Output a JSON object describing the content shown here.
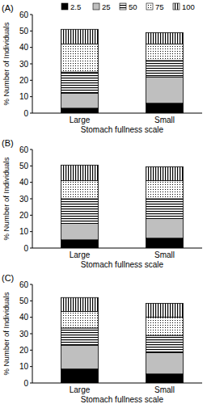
{
  "chart_data": [
    {
      "type": "bar",
      "stacked": true,
      "title": "(A)",
      "x_label": "Stomach fullness scale",
      "y_label": "% Number of Individuals",
      "legend": "top",
      "categories": [
        "Large",
        "Small"
      ],
      "ylim": [
        0,
        60
      ],
      "yticks": [
        0,
        10,
        20,
        30,
        40,
        50,
        60
      ],
      "series": [
        {
          "name": "2.5",
          "color": "#000000",
          "values": [
            3,
            6
          ]
        },
        {
          "name": "25",
          "color": "#bfbfbf",
          "values": [
            9,
            16
          ]
        },
        {
          "name": "50",
          "color": "#ffffff",
          "values": [
            13,
            10
          ]
        },
        {
          "name": "75",
          "color": "#ffffff",
          "values": [
            17,
            10
          ]
        },
        {
          "name": "100",
          "color": "#ffffff",
          "values": [
            9,
            7
          ]
        }
      ]
    },
    {
      "type": "bar",
      "stacked": true,
      "title": "(B)",
      "x_label": "Stomach fullness scale",
      "y_label": "% Number of Individuals",
      "categories": [
        "Large",
        "Small"
      ],
      "ylim": [
        0,
        60
      ],
      "yticks": [
        0,
        10,
        20,
        30,
        40,
        50,
        60
      ],
      "series": [
        {
          "name": "2.5",
          "color": "#000000",
          "values": [
            5,
            6
          ]
        },
        {
          "name": "25",
          "color": "#bfbfbf",
          "values": [
            10,
            12
          ]
        },
        {
          "name": "50",
          "color": "#ffffff",
          "values": [
            15,
            12
          ]
        },
        {
          "name": "75",
          "color": "#ffffff",
          "values": [
            11,
            11
          ]
        },
        {
          "name": "100",
          "color": "#ffffff",
          "values": [
            9.5,
            8.5
          ]
        }
      ]
    },
    {
      "type": "bar",
      "stacked": true,
      "title": "(C)",
      "x_label": "Stomach fullness scale",
      "y_label": "% Number of Individuals",
      "categories": [
        "Large",
        "Small"
      ],
      "ylim": [
        0,
        60
      ],
      "yticks": [
        0,
        10,
        20,
        30,
        40,
        50,
        60
      ],
      "series": [
        {
          "name": "2.5",
          "color": "#000000",
          "values": [
            8.5,
            5.5
          ]
        },
        {
          "name": "25",
          "color": "#bfbfbf",
          "values": [
            14.5,
            13
          ]
        },
        {
          "name": "50",
          "color": "#ffffff",
          "values": [
            10.5,
            10.5
          ]
        },
        {
          "name": "75",
          "color": "#ffffff",
          "values": [
            10,
            11
          ]
        },
        {
          "name": "100",
          "color": "#ffffff",
          "values": [
            8.5,
            8.5
          ]
        }
      ]
    }
  ]
}
